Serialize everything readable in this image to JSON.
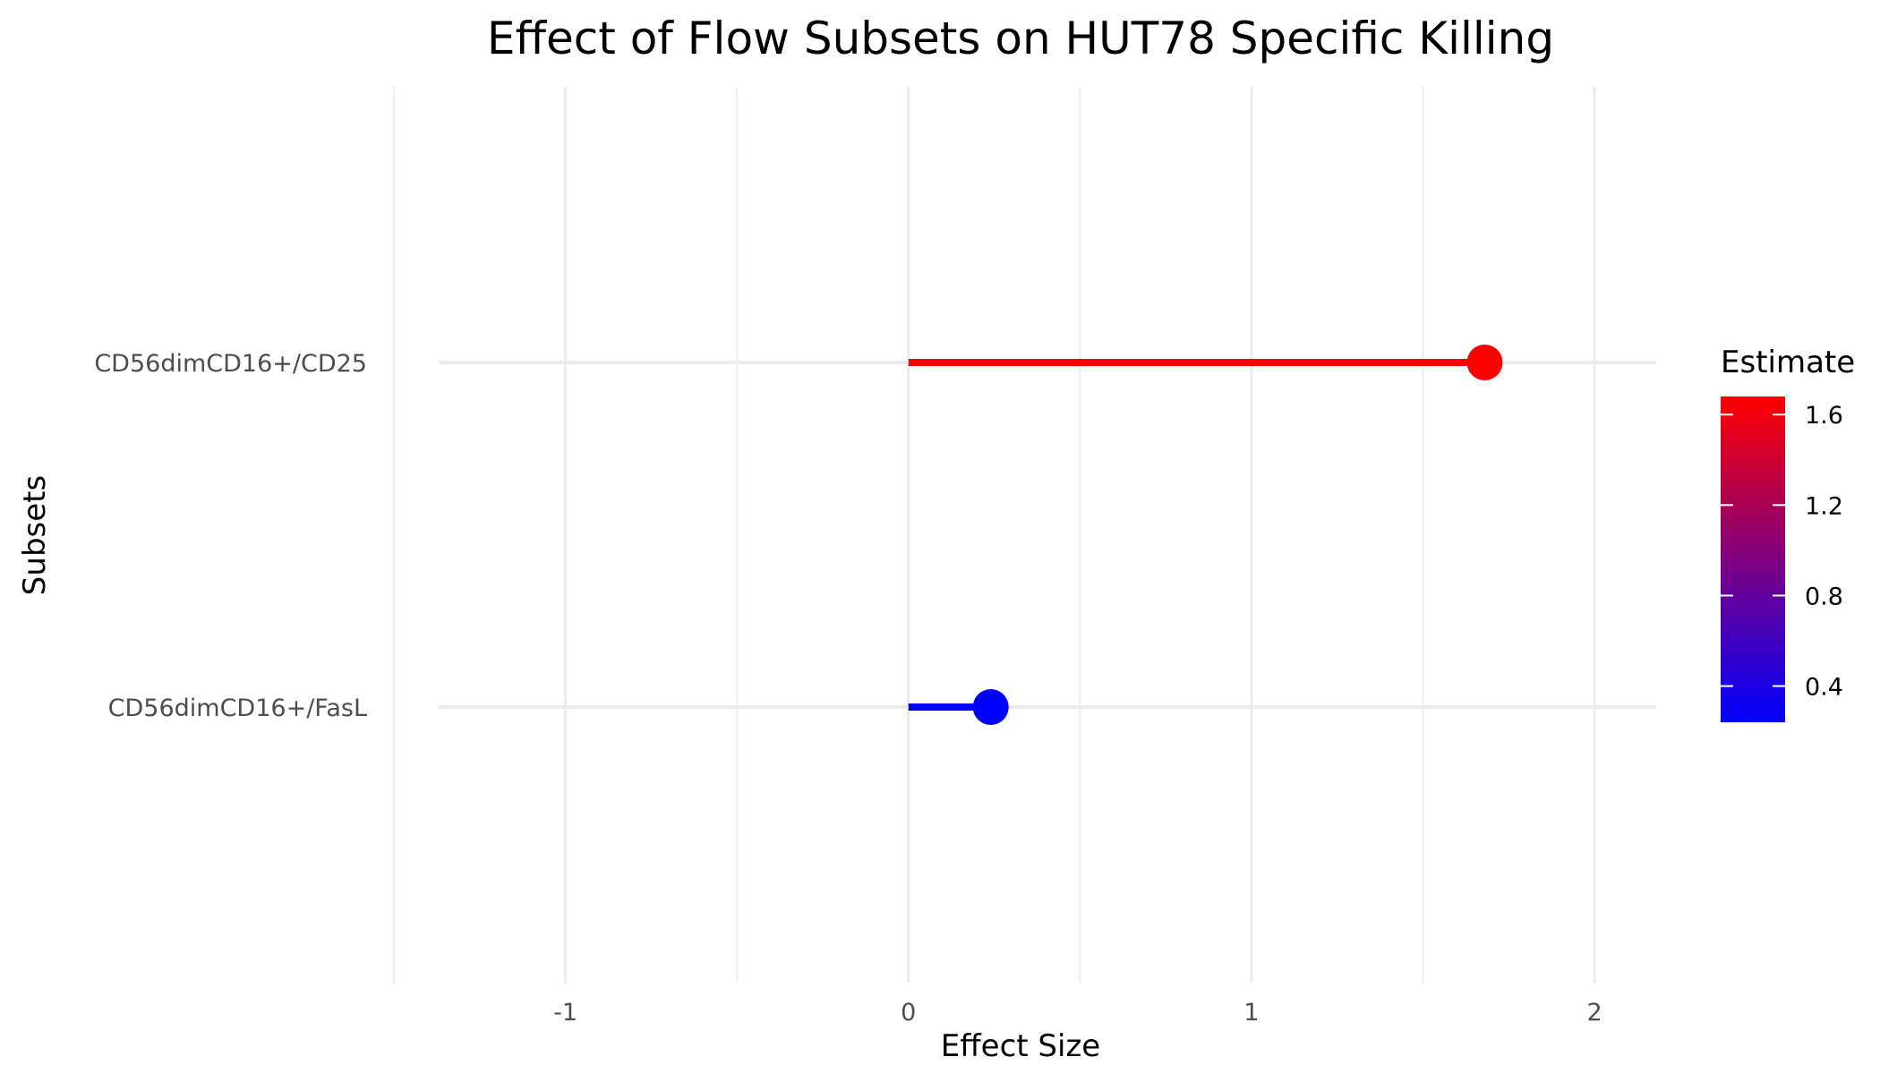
{
  "chart_data": {
    "type": "lollipop",
    "title": "Effect of Flow Subsets on HUT78 Specific Killing",
    "xlabel": "Effect Size",
    "ylabel": "Subsets",
    "xlim": [
      -1.5,
      2.18
    ],
    "x_ticks": [
      -1,
      0,
      1,
      2
    ],
    "x_tick_labels": [
      "-1",
      "0",
      "1",
      "2"
    ],
    "x_minor_ticks": [
      -1.5,
      -0.5,
      0.5,
      1.5
    ],
    "grid": true,
    "categories": [
      "CD56dimCD16+/CD25",
      "CD56dimCD16+/FasL"
    ],
    "values": [
      1.68,
      0.24
    ],
    "baseline": 0,
    "legend": {
      "title": "Estimate",
      "placement": "right",
      "type": "colorbar",
      "range": [
        0.24,
        1.68
      ],
      "ticks": [
        0.4,
        0.8,
        1.2,
        1.6
      ],
      "tick_labels": [
        "0.4",
        "0.8",
        "1.2",
        "1.6"
      ],
      "color_low": "#0000ff",
      "color_high": "#ff0000"
    }
  }
}
